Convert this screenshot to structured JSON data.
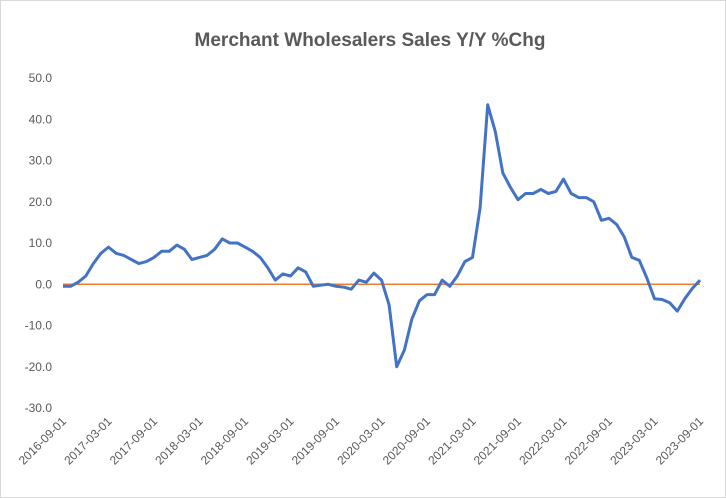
{
  "chart_data": {
    "type": "line",
    "title": "Merchant Wholesalers Sales Y/Y %Chg",
    "categories": [
      "2016-09-01",
      null,
      null,
      null,
      null,
      null,
      "2017-03-01",
      null,
      null,
      null,
      null,
      null,
      "2017-09-01",
      null,
      null,
      null,
      null,
      null,
      "2018-03-01",
      null,
      null,
      null,
      null,
      null,
      "2018-09-01",
      null,
      null,
      null,
      null,
      null,
      "2019-03-01",
      null,
      null,
      null,
      null,
      null,
      "2019-09-01",
      null,
      null,
      null,
      null,
      null,
      "2020-03-01",
      null,
      null,
      null,
      null,
      null,
      "2020-09-01",
      null,
      null,
      null,
      null,
      null,
      "2021-03-01",
      null,
      null,
      null,
      null,
      null,
      "2021-09-01",
      null,
      null,
      null,
      null,
      null,
      "2022-03-01",
      null,
      null,
      null,
      null,
      null,
      "2022-09-01",
      null,
      null,
      null,
      null,
      null,
      "2023-03-01",
      null,
      null,
      null,
      null,
      null,
      "2023-09-01"
    ],
    "series": [
      {
        "name": "Y/Y %Chg",
        "color": "#4472c4",
        "values": [
          -0.5,
          -0.5,
          0.5,
          2,
          5,
          7.5,
          9,
          7.5,
          7,
          6,
          5,
          5.5,
          6.5,
          8,
          8,
          9.5,
          8.5,
          6,
          6.5,
          7,
          8.5,
          11,
          10,
          10,
          9,
          8,
          6.5,
          4,
          1,
          2.5,
          2,
          4,
          3,
          -0.5,
          -0.2,
          0,
          -0.5,
          -0.7,
          -1.2,
          1,
          0.5,
          2.7,
          1,
          -5,
          -20,
          -16,
          -8.5,
          -4,
          -2.5,
          -2.5,
          1,
          -0.5,
          2,
          5.5,
          6.5,
          18.5,
          43.5,
          37,
          27,
          23.5,
          20.5,
          22,
          22,
          23,
          22,
          22.5,
          25.5,
          22,
          21,
          21,
          20,
          15.5,
          16,
          14.5,
          11.5,
          6.5,
          5.8,
          1.5,
          -3.5,
          -3.7,
          -4.5,
          -6.5,
          -3.5,
          -1,
          1
        ]
      }
    ],
    "zero_line_color": "#ed7d31",
    "ylim": [
      -30,
      50
    ],
    "yticks": [
      {
        "value": -30,
        "label": "-30.0"
      },
      {
        "value": -20,
        "label": "-20.0"
      },
      {
        "value": -10,
        "label": "-10.0"
      },
      {
        "value": 0,
        "label": "0.0"
      },
      {
        "value": 10,
        "label": "10.0"
      },
      {
        "value": 20,
        "label": "20.0"
      },
      {
        "value": 30,
        "label": "30.0"
      },
      {
        "value": 40,
        "label": "40.0"
      },
      {
        "value": 50,
        "label": "50.0"
      }
    ]
  }
}
